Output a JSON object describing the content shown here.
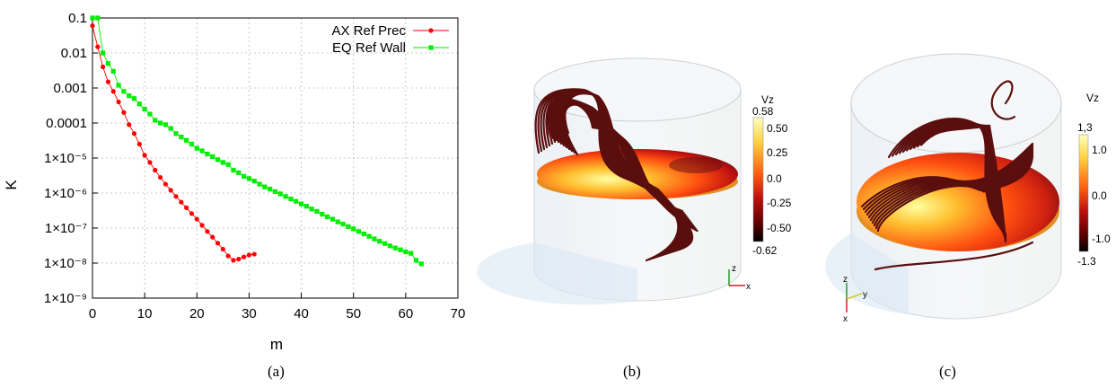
{
  "captions": {
    "a": "(a)",
    "b": "(b)",
    "c": "(c)"
  },
  "chart_data": [
    {
      "type": "scatter",
      "ylabel": "K",
      "xlabel": "m",
      "yscale": "log",
      "xlim": [
        0,
        70
      ],
      "ylim": [
        1e-09,
        0.1
      ],
      "xticks": [
        "0",
        "10",
        "20",
        "30",
        "40",
        "50",
        "60",
        "70"
      ],
      "yticks": [
        "0.1",
        "0.01",
        "0.001",
        "0.0001",
        "1×10⁻⁵",
        "1×10⁻⁶",
        "1×10⁻⁷",
        "1×10⁻⁸",
        "1×10⁻⁹"
      ],
      "grid": true,
      "legend_position": "top-right",
      "series": [
        {
          "name": "AX Ref Prec",
          "color": "#ff0000",
          "marker": "circle",
          "x": [
            0,
            1,
            2,
            3,
            4,
            5,
            6,
            7,
            8,
            9,
            10,
            11,
            12,
            13,
            14,
            15,
            16,
            17,
            18,
            19,
            20,
            21,
            22,
            23,
            24,
            25,
            26,
            27,
            28,
            29,
            30,
            31
          ],
          "y": [
            0.06,
            0.015,
            0.004,
            0.0015,
            0.0008,
            0.0004,
            0.0002,
            9e-05,
            5e-05,
            2.5e-05,
            1.2e-05,
            7.5e-06,
            4.5e-06,
            2.8e-06,
            1.8e-06,
            1.2e-06,
            8e-07,
            5.5e-07,
            3.8e-07,
            2.6e-07,
            1.8e-07,
            1.2e-07,
            8e-08,
            5.5e-08,
            3.7e-08,
            2.5e-08,
            1.6e-08,
            1.2e-08,
            1.3e-08,
            1.5e-08,
            1.7e-08,
            1.8e-08
          ]
        },
        {
          "name": "EQ Ref Wall",
          "color": "#00ee00",
          "marker": "square",
          "x": [
            0,
            1,
            2,
            3,
            4,
            5,
            6,
            7,
            8,
            9,
            10,
            11,
            12,
            13,
            14,
            15,
            16,
            17,
            18,
            19,
            20,
            21,
            22,
            23,
            24,
            25,
            26,
            27,
            28,
            29,
            30,
            31,
            32,
            33,
            34,
            35,
            36,
            37,
            38,
            39,
            40,
            41,
            42,
            43,
            44,
            45,
            46,
            47,
            48,
            49,
            50,
            51,
            52,
            53,
            54,
            55,
            56,
            57,
            58,
            59,
            60,
            61,
            62,
            63
          ],
          "y": [
            0.1,
            0.1,
            0.01,
            0.005,
            0.003,
            0.0012,
            0.0008,
            0.0006,
            0.0005,
            0.00035,
            0.00025,
            0.00018,
            0.00012,
            0.0001,
            9e-05,
            7e-05,
            5e-05,
            4e-05,
            3.2e-05,
            2.5e-05,
            1.9e-05,
            1.6e-05,
            1.3e-05,
            1.1e-05,
            9e-06,
            7.5e-06,
            6.5e-06,
            4.5e-06,
            3.8e-06,
            3e-06,
            2.6e-06,
            2.2e-06,
            1.8e-06,
            1.5e-06,
            1.3e-06,
            1.1e-06,
            9.5e-07,
            8e-07,
            6.8e-07,
            5.8e-07,
            4.9e-07,
            4.2e-07,
            3.5e-07,
            3e-07,
            2.5e-07,
            2.1e-07,
            1.8e-07,
            1.5e-07,
            1.3e-07,
            1.1e-07,
            9.5e-08,
            8e-08,
            6.8e-08,
            5.8e-08,
            4.9e-08,
            4.2e-08,
            3.6e-08,
            3.1e-08,
            2.7e-08,
            2.4e-08,
            2.1e-08,
            1.9e-08,
            1.2e-08,
            9.5e-09
          ]
        }
      ]
    }
  ],
  "panel_b": {
    "colorbar": {
      "title": "Vz",
      "ticks": [
        "0.58",
        "0.50",
        "0.25",
        "0.0",
        "-0.25",
        "-0.50",
        "-0.62"
      ],
      "colors": [
        "#ffffc0",
        "#ffd040",
        "#ff6010",
        "#c01010",
        "#600000",
        "#000000"
      ]
    },
    "axes_labels": [
      "z",
      "x"
    ]
  },
  "panel_c": {
    "colorbar": {
      "title": "Vz",
      "ticks": [
        "1,3",
        "1.0",
        "0.0",
        "-1.0",
        "-1.3"
      ],
      "colors": [
        "#ffffc0",
        "#ffd040",
        "#ff6010",
        "#c01010",
        "#600000",
        "#000000"
      ]
    },
    "axes_labels": [
      "z",
      "y",
      "x"
    ]
  }
}
